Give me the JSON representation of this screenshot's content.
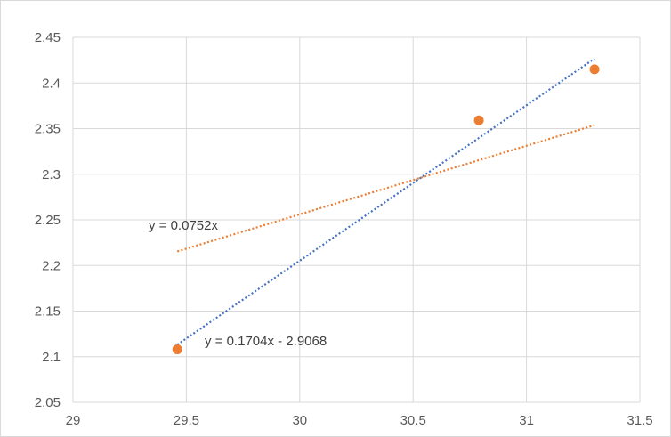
{
  "chart_data": {
    "type": "scatter",
    "xlim": [
      29,
      31.5
    ],
    "ylim": [
      2.05,
      2.45
    ],
    "xticks": [
      "29",
      "29.5",
      "30",
      "30.5",
      "31",
      "31.5"
    ],
    "yticks": [
      "2.05",
      "2.1",
      "2.15",
      "2.2",
      "2.25",
      "2.3",
      "2.35",
      "2.4",
      "2.45"
    ],
    "grid": true,
    "legend": "none",
    "series": [
      {
        "points": [
          {
            "x": 29.46,
            "y": 2.108
          },
          {
            "x": 30.79,
            "y": 2.359
          },
          {
            "x": 31.3,
            "y": 2.415
          }
        ],
        "color": "#ED7D31"
      }
    ],
    "trendlines": [
      {
        "equation": "y = 0.1704x - 2.9068",
        "slope": 0.1704,
        "intercept": -2.9068,
        "x_range": [
          29.46,
          31.3
        ],
        "color": "#4472C4",
        "style": "dotted"
      },
      {
        "equation": "y = 0.0752x",
        "slope": 0.0752,
        "intercept": 0,
        "x_range": [
          29.46,
          31.3
        ],
        "color": "#ED7D31",
        "style": "dotted"
      }
    ]
  }
}
